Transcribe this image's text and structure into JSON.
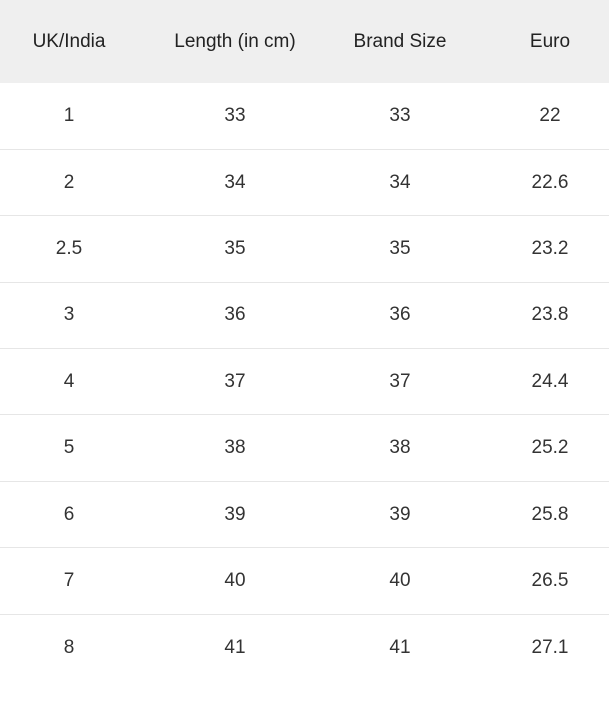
{
  "table": {
    "headers": [
      "UK/India",
      "Length (in cm)",
      "Brand Size",
      "Euro"
    ],
    "rows": [
      [
        "1",
        "33",
        "33",
        "22"
      ],
      [
        "2",
        "34",
        "34",
        "22.6"
      ],
      [
        "2.5",
        "35",
        "35",
        "23.2"
      ],
      [
        "3",
        "36",
        "36",
        "23.8"
      ],
      [
        "4",
        "37",
        "37",
        "24.4"
      ],
      [
        "5",
        "38",
        "38",
        "25.2"
      ],
      [
        "6",
        "39",
        "39",
        "25.8"
      ],
      [
        "7",
        "40",
        "40",
        "26.5"
      ],
      [
        "8",
        "41",
        "41",
        "27.1"
      ]
    ]
  }
}
